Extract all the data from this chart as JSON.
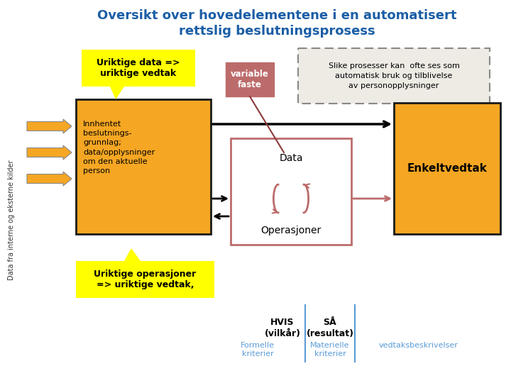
{
  "title_line1": "Oversikt over hovedelementene i en automatisert",
  "title_line2": "rettslig beslutningsprosess",
  "title_color": "#1B5EA6",
  "title_fontsize": 13,
  "bg_color": "#ffffff",
  "left_label": "Data fra interne og eksterne kilder",
  "orange_box_color": "#F5A623",
  "orange_box_border": "#1a1a1a",
  "orange_box_text": "Innhentet\nbeslutnings-\ngrunnlag;\ndata/opplysninger\nom den aktuelle\nperson",
  "enkeltvedtak_text": "Enkeltvedtak",
  "yellow_box1_text": "Uriktige data =>\nuriktige vedtak",
  "yellow_box1_color": "#FFFF00",
  "yellow_box2_text": "Uriktige operasjoner\n=> uriktige vedtak,",
  "yellow_box2_color": "#FFFF00",
  "pink_box_text": "variable\nfaste",
  "pink_box_color": "#BC6B6B",
  "data_ops_box_color": "#ffffff",
  "data_ops_border": "#BC6B6B",
  "data_label": "Data",
  "ops_label": "Operasjoner",
  "dashed_box_text": "Slike prosesser kan  ofte ses som\nautomatisk bruk og tilblivelse\nav personopplysninger",
  "dashed_box_bg": "#eeebe5",
  "hvis_text": "HVIS\n(vilkår)",
  "sa_text": "SÅ\n(resultat)",
  "formelle_text": "Formelle\nkriterier",
  "materielle_text": "Materielle\nkriterier",
  "vedtaks_text": "vedtaksbeskrivelser",
  "blue_label_color": "#5B9BD5",
  "pink_arrow_color": "#BC6B6B",
  "divider_color": "#5B9BD5"
}
